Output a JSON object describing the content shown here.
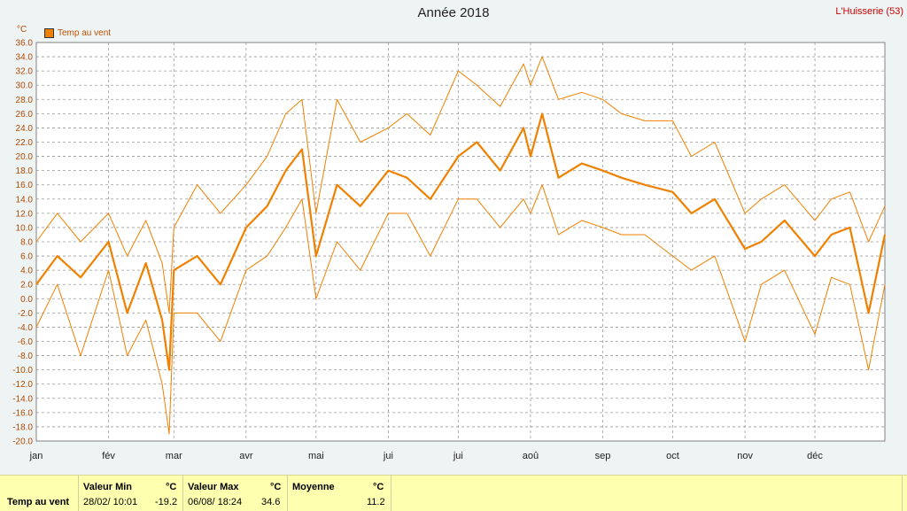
{
  "header": {
    "title": "Année 2018",
    "station": "L'Huisserie (53)",
    "unit": "°C"
  },
  "legend": {
    "label": "Temp au vent",
    "color": "#f08000"
  },
  "stats": {
    "row_label": "Temp au vent",
    "min": {
      "header": "Valeur Min",
      "unit": "°C",
      "datetime": "28/02/  10:01",
      "value": "-19.2"
    },
    "max": {
      "header": "Valeur Max",
      "unit": "°C",
      "datetime": "06/08/  18:24",
      "value": "34.6"
    },
    "avg": {
      "header": "Moyenne",
      "unit": "°C",
      "value": "11.2"
    }
  },
  "chart_data": {
    "type": "line",
    "title": "Année 2018",
    "ylabel": "°C",
    "ylim": [
      -20,
      36
    ],
    "ystep": 2,
    "y_tick_labels": [
      "-20.0",
      "-18.0",
      "-16.0",
      "-14.0",
      "-12.0",
      "-10.0",
      "-8.0",
      "-6.0",
      "-4.0",
      "-2.0",
      "0.0",
      "2.0",
      "4.0",
      "6.0",
      "8.0",
      "10.0",
      "12.0",
      "14.0",
      "16.0",
      "18.0",
      "20.0",
      "22.0",
      "24.0",
      "26.0",
      "28.0",
      "30.0",
      "32.0",
      "34.0",
      "36.0"
    ],
    "x_tick_labels": [
      "jan",
      "fév",
      "mar",
      "avr",
      "mai",
      "jui",
      "jui",
      "aoû",
      "sep",
      "oct",
      "nov",
      "déc"
    ],
    "x_day_of_year_ticks": [
      1,
      32,
      60,
      91,
      121,
      152,
      182,
      213,
      244,
      274,
      305,
      335
    ],
    "grid": true,
    "legend_position": "top-left",
    "series": [
      {
        "name": "Temp au vent",
        "role": "mean",
        "color": "#f08000",
        "x": [
          1,
          10,
          20,
          32,
          40,
          48,
          55,
          58,
          60,
          70,
          80,
          91,
          100,
          108,
          115,
          121,
          130,
          140,
          152,
          160,
          170,
          182,
          190,
          200,
          210,
          213,
          218,
          225,
          235,
          244,
          252,
          262,
          274,
          282,
          292,
          305,
          312,
          322,
          335,
          342,
          350,
          358,
          365
        ],
        "y": [
          2,
          6,
          3,
          8,
          -2,
          5,
          -3,
          -10,
          4,
          6,
          2,
          10,
          13,
          18,
          21,
          6,
          16,
          13,
          18,
          17,
          14,
          20,
          22,
          18,
          24,
          20,
          26,
          17,
          19,
          18,
          17,
          16,
          15,
          12,
          14,
          7,
          8,
          11,
          6,
          9,
          10,
          -2,
          9
        ]
      },
      {
        "name": "",
        "role": "max",
        "color": "#f08000",
        "x": [
          1,
          10,
          20,
          32,
          40,
          48,
          55,
          58,
          60,
          70,
          80,
          91,
          100,
          108,
          115,
          121,
          130,
          140,
          152,
          160,
          170,
          182,
          190,
          200,
          210,
          213,
          218,
          225,
          235,
          244,
          252,
          262,
          274,
          282,
          292,
          305,
          312,
          322,
          335,
          342,
          350,
          358,
          365
        ],
        "y": [
          8,
          12,
          8,
          12,
          6,
          11,
          5,
          -2,
          10,
          16,
          12,
          16,
          20,
          26,
          28,
          12,
          28,
          22,
          24,
          26,
          23,
          32,
          30,
          27,
          33,
          30,
          34,
          28,
          29,
          28,
          26,
          25,
          25,
          20,
          22,
          12,
          14,
          16,
          11,
          14,
          15,
          8,
          13
        ]
      },
      {
        "name": "",
        "role": "min",
        "color": "#f08000",
        "x": [
          1,
          10,
          20,
          32,
          40,
          48,
          55,
          58,
          60,
          70,
          80,
          91,
          100,
          108,
          115,
          121,
          130,
          140,
          152,
          160,
          170,
          182,
          190,
          200,
          210,
          213,
          218,
          225,
          235,
          244,
          252,
          262,
          274,
          282,
          292,
          305,
          312,
          322,
          335,
          342,
          350,
          358,
          365
        ],
        "y": [
          -4,
          2,
          -8,
          4,
          -8,
          -3,
          -12,
          -19,
          -2,
          -2,
          -6,
          4,
          6,
          10,
          14,
          0,
          8,
          4,
          12,
          12,
          6,
          14,
          14,
          10,
          14,
          12,
          16,
          9,
          11,
          10,
          9,
          9,
          6,
          4,
          6,
          -6,
          2,
          4,
          -5,
          3,
          2,
          -10,
          2
        ]
      }
    ]
  }
}
